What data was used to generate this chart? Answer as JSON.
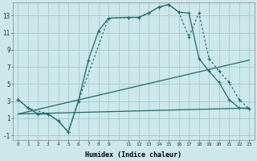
{
  "xlabel": "Humidex (Indice chaleur)",
  "bg_color": "#cce8ea",
  "grid_color": "#aacccc",
  "line_color": "#1a6b6b",
  "xlim": [
    -0.5,
    23.5
  ],
  "ylim": [
    -1.5,
    14.5
  ],
  "xticks": [
    0,
    1,
    2,
    3,
    4,
    5,
    6,
    7,
    8,
    9,
    11,
    12,
    13,
    14,
    15,
    16,
    17,
    18,
    19,
    20,
    21,
    22,
    23
  ],
  "yticks": [
    -1,
    1,
    3,
    5,
    7,
    9,
    11,
    13
  ],
  "line1_x": [
    0,
    1,
    2,
    3,
    4,
    5,
    6,
    7,
    8,
    9,
    11,
    12,
    13,
    14,
    15,
    16,
    17,
    18,
    19,
    20,
    21,
    22,
    23
  ],
  "line1_y": [
    3.2,
    2.2,
    1.5,
    1.5,
    0.7,
    -0.6,
    3.0,
    7.8,
    11.2,
    12.7,
    12.8,
    12.8,
    13.3,
    14.0,
    14.3,
    13.4,
    13.3,
    8.0,
    6.5,
    5.2,
    3.2,
    2.2,
    2.1
  ],
  "line2_x": [
    0,
    1,
    3,
    4,
    5,
    6,
    9,
    11,
    12,
    13,
    14,
    15,
    16,
    17,
    18,
    19,
    20,
    21,
    22,
    23
  ],
  "line2_y": [
    3.2,
    2.2,
    1.5,
    0.7,
    -0.6,
    3.0,
    12.7,
    12.8,
    12.8,
    13.3,
    14.0,
    14.3,
    13.4,
    10.5,
    13.3,
    8.0,
    6.5,
    5.2,
    3.2,
    2.1
  ],
  "line3_x": [
    0,
    23
  ],
  "line3_y": [
    1.5,
    7.8
  ],
  "line4_x": [
    0,
    23
  ],
  "line4_y": [
    1.5,
    2.2
  ]
}
